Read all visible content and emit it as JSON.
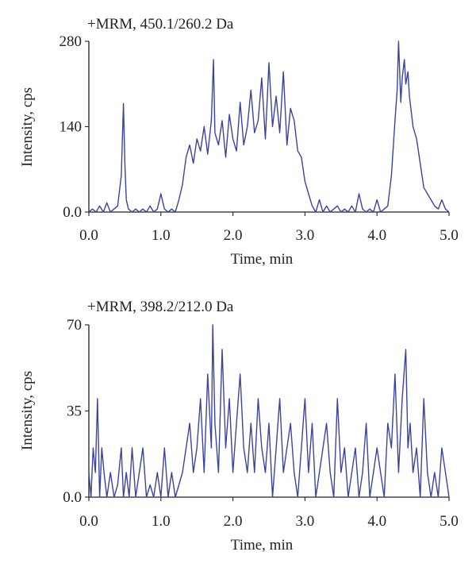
{
  "chart_data": [
    {
      "type": "line",
      "title": "+MRM, 450.1/260.2 Da",
      "xlabel": "Time, min",
      "ylabel": "Intensity, cps",
      "xlim": [
        0,
        5
      ],
      "ylim": [
        0,
        280
      ],
      "x_ticks": [
        0,
        1,
        2,
        3,
        4,
        5
      ],
      "x_tick_labels": [
        "0.0",
        "1.0",
        "2.0",
        "3.0",
        "4.0",
        "5.0"
      ],
      "y_ticks": [
        0,
        140,
        280
      ],
      "y_tick_labels": [
        "0.0",
        "140",
        "280"
      ],
      "grid": false,
      "line_color": "#3a44a0",
      "series": [
        {
          "x": [
            0.0,
            0.05,
            0.1,
            0.15,
            0.2,
            0.25,
            0.3,
            0.35,
            0.4,
            0.45,
            0.48,
            0.5,
            0.52,
            0.55,
            0.6,
            0.65,
            0.7,
            0.75,
            0.8,
            0.85,
            0.9,
            0.95,
            1.0,
            1.05,
            1.1,
            1.15,
            1.2,
            1.25,
            1.3,
            1.35,
            1.4,
            1.45,
            1.5,
            1.55,
            1.6,
            1.65,
            1.7,
            1.73,
            1.75,
            1.8,
            1.85,
            1.9,
            1.95,
            2.0,
            2.05,
            2.1,
            2.15,
            2.2,
            2.25,
            2.3,
            2.35,
            2.4,
            2.45,
            2.5,
            2.55,
            2.6,
            2.65,
            2.7,
            2.75,
            2.8,
            2.85,
            2.9,
            2.95,
            3.0,
            3.05,
            3.1,
            3.15,
            3.2,
            3.25,
            3.3,
            3.35,
            3.4,
            3.45,
            3.5,
            3.55,
            3.6,
            3.65,
            3.7,
            3.75,
            3.8,
            3.85,
            3.9,
            3.95,
            4.0,
            4.05,
            4.1,
            4.15,
            4.2,
            4.25,
            4.28,
            4.3,
            4.33,
            4.35,
            4.38,
            4.4,
            4.43,
            4.45,
            4.5,
            4.55,
            4.6,
            4.65,
            4.7,
            4.75,
            4.8,
            4.85,
            4.9,
            4.95,
            5.0
          ],
          "values": [
            0,
            5,
            0,
            10,
            0,
            15,
            0,
            5,
            10,
            60,
            178,
            80,
            20,
            5,
            0,
            5,
            0,
            5,
            0,
            10,
            0,
            5,
            30,
            5,
            0,
            5,
            0,
            20,
            45,
            90,
            110,
            80,
            120,
            100,
            140,
            95,
            150,
            250,
            130,
            110,
            150,
            90,
            160,
            120,
            100,
            180,
            110,
            140,
            200,
            130,
            150,
            220,
            120,
            245,
            140,
            190,
            130,
            230,
            110,
            170,
            150,
            100,
            90,
            50,
            30,
            10,
            0,
            20,
            0,
            10,
            0,
            5,
            10,
            0,
            5,
            0,
            10,
            0,
            30,
            5,
            0,
            5,
            0,
            20,
            0,
            5,
            10,
            60,
            150,
            200,
            280,
            180,
            220,
            250,
            210,
            230,
            190,
            140,
            120,
            80,
            40,
            30,
            20,
            10,
            5,
            20,
            5,
            0
          ]
        }
      ]
    },
    {
      "type": "line",
      "title": "+MRM, 398.2/212.0 Da",
      "xlabel": "Time, min",
      "ylabel": "Intensity, cps",
      "xlim": [
        0,
        5
      ],
      "ylim": [
        0,
        70
      ],
      "x_ticks": [
        0,
        1,
        2,
        3,
        4,
        5
      ],
      "x_tick_labels": [
        "0.0",
        "1.0",
        "2.0",
        "3.0",
        "4.0",
        "5.0"
      ],
      "y_ticks": [
        0,
        35,
        70
      ],
      "y_tick_labels": [
        "0.0",
        "35",
        "70"
      ],
      "grid": false,
      "line_color": "#3a44a0",
      "series": [
        {
          "x": [
            0.0,
            0.03,
            0.06,
            0.09,
            0.12,
            0.15,
            0.18,
            0.21,
            0.25,
            0.3,
            0.35,
            0.4,
            0.45,
            0.48,
            0.52,
            0.56,
            0.6,
            0.65,
            0.7,
            0.75,
            0.8,
            0.85,
            0.9,
            0.95,
            1.0,
            1.05,
            1.1,
            1.15,
            1.2,
            1.25,
            1.3,
            1.35,
            1.4,
            1.45,
            1.5,
            1.55,
            1.6,
            1.65,
            1.7,
            1.72,
            1.75,
            1.8,
            1.85,
            1.9,
            1.95,
            2.0,
            2.05,
            2.1,
            2.15,
            2.2,
            2.25,
            2.3,
            2.35,
            2.4,
            2.45,
            2.5,
            2.55,
            2.6,
            2.65,
            2.7,
            2.75,
            2.8,
            2.85,
            2.9,
            2.95,
            3.0,
            3.05,
            3.1,
            3.15,
            3.2,
            3.25,
            3.3,
            3.35,
            3.4,
            3.45,
            3.5,
            3.55,
            3.6,
            3.65,
            3.7,
            3.75,
            3.8,
            3.85,
            3.9,
            3.95,
            4.0,
            4.05,
            4.1,
            4.15,
            4.2,
            4.25,
            4.3,
            4.35,
            4.4,
            4.43,
            4.46,
            4.5,
            4.55,
            4.6,
            4.65,
            4.7,
            4.75,
            4.8,
            4.85,
            4.9,
            4.95,
            5.0
          ],
          "values": [
            10,
            0,
            20,
            10,
            40,
            0,
            20,
            10,
            0,
            10,
            0,
            5,
            20,
            0,
            10,
            0,
            20,
            0,
            10,
            20,
            0,
            5,
            0,
            10,
            0,
            20,
            0,
            10,
            0,
            5,
            10,
            20,
            30,
            10,
            20,
            40,
            10,
            50,
            20,
            70,
            30,
            10,
            60,
            20,
            40,
            10,
            30,
            50,
            20,
            10,
            30,
            10,
            40,
            20,
            10,
            30,
            0,
            20,
            40,
            10,
            20,
            30,
            10,
            0,
            20,
            40,
            10,
            30,
            0,
            10,
            20,
            30,
            10,
            0,
            40,
            10,
            20,
            0,
            10,
            20,
            0,
            10,
            30,
            0,
            10,
            20,
            10,
            0,
            30,
            20,
            50,
            10,
            40,
            60,
            20,
            30,
            10,
            20,
            0,
            40,
            10,
            0,
            10,
            0,
            20,
            10,
            0
          ]
        }
      ]
    }
  ]
}
